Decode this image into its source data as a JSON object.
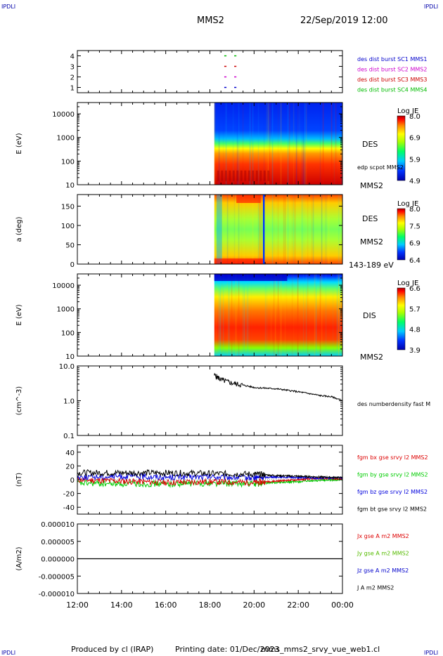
{
  "header": {
    "corner_tl": "IPDLI",
    "corner_tr": "IPDLI",
    "corner_bl": "IPDLI",
    "corner_br": "IPDLI",
    "title": "MMS2",
    "datetime": "22/Sep/2019 12:00"
  },
  "footer": {
    "produced": "Produced by cl (IRAP)",
    "printing": "Printing date: 01/Dec/2023",
    "file": "mms_mms2_srvy_vue_web1.cl"
  },
  "colors": {
    "mms1": "#0000cc",
    "mms2": "#cc00cc",
    "mms3": "#cc0000",
    "mms4": "#00bb00",
    "bx": "#dd0000",
    "by": "#00cc00",
    "bz": "#0000dd",
    "bt": "#000000"
  },
  "chart_data": [
    {
      "type": "scatter",
      "panel": "burst",
      "ylabel": "",
      "ylim": [
        0.5,
        4.5
      ],
      "y_ticks": [
        "1",
        "2",
        "3",
        "4"
      ],
      "legend": [
        "des dist burst SC1 MMS1",
        "des dist burst SC2 MMS2",
        "des dist burst SC3 MMS3",
        "des dist burst SC4 MMS4"
      ],
      "series": [
        {
          "name": "des dist burst SC4 MMS4",
          "y": 4,
          "intervals": [
            [
              18.65,
              18.75
            ],
            [
              19.1,
              19.2
            ]
          ]
        },
        {
          "name": "des dist burst SC3 MMS3",
          "y": 3,
          "intervals": [
            [
              18.65,
              18.75
            ],
            [
              19.1,
              19.2
            ]
          ]
        },
        {
          "name": "des dist burst SC2 MMS2",
          "y": 2,
          "intervals": [
            [
              18.65,
              18.75
            ],
            [
              19.1,
              19.2
            ]
          ]
        },
        {
          "name": "des dist burst SC1 MMS1",
          "y": 1,
          "intervals": [
            [
              18.65,
              18.75
            ],
            [
              19.1,
              19.2
            ]
          ]
        }
      ]
    },
    {
      "type": "heatmap",
      "panel": "des-energy",
      "ylabel": "E (eV)",
      "yscale": "log",
      "ylim": [
        10,
        30000
      ],
      "y_ticks": [
        "10",
        "100",
        "1000",
        "10000"
      ],
      "data_start_hour": 18.2,
      "labels": [
        "DES",
        "edp scpot MMS2",
        "MMS2"
      ],
      "colorbar": {
        "title": "Log JE",
        "ticks": [
          "8.0",
          "6.9",
          "5.9",
          "4.9"
        ]
      },
      "peak_band_eV": [
        60,
        250
      ]
    },
    {
      "type": "heatmap",
      "panel": "des-pitch",
      "ylabel": "a (deg)",
      "ylim": [
        0,
        180
      ],
      "y_ticks": [
        "0",
        "50",
        "100",
        "150"
      ],
      "data_start_hour": 18.2,
      "labels": [
        "DES",
        "MMS2",
        "143-189 eV"
      ],
      "colorbar": {
        "title": "Log JE",
        "ticks": [
          "8.0",
          "7.5",
          "6.9",
          "6.4"
        ]
      }
    },
    {
      "type": "heatmap",
      "panel": "dis-energy",
      "ylabel": "E (eV)",
      "yscale": "log",
      "ylim": [
        10,
        30000
      ],
      "y_ticks": [
        "10",
        "100",
        "1000",
        "10000"
      ],
      "data_start_hour": 18.2,
      "labels": [
        "DIS",
        "MMS2"
      ],
      "colorbar": {
        "title": "Log JE",
        "ticks": [
          "6.6",
          "5.7",
          "4.8",
          "3.9"
        ]
      },
      "peak_band_eV": [
        100,
        2000
      ]
    },
    {
      "type": "line",
      "panel": "density",
      "ylabel": "(cm^-3)",
      "yscale": "log",
      "ylim": [
        0.1,
        10
      ],
      "y_ticks": [
        "0.1",
        "1.0",
        "10.0"
      ],
      "legend": [
        "des numberdensity fast M"
      ],
      "series": [
        {
          "name": "des numberdensity fast M",
          "x": [
            18.2,
            18.5,
            19.0,
            19.5,
            20.0,
            20.5,
            21.0,
            21.5,
            22.0,
            22.5,
            23.0,
            23.5,
            24.0
          ],
          "values": [
            5.5,
            4.0,
            3.2,
            2.8,
            2.4,
            2.3,
            2.2,
            2.0,
            1.8,
            1.6,
            1.4,
            1.3,
            1.0
          ]
        }
      ]
    },
    {
      "type": "line",
      "panel": "magnetic-field",
      "ylabel": "(nT)",
      "ylim": [
        -50,
        50
      ],
      "y_ticks": [
        "-40",
        "-20",
        "0",
        "20",
        "40"
      ],
      "legend": [
        "fgm bx gse srvy l2 MMS2",
        "fgm by gse srvy l2 MMS2",
        "fgm bz gse srvy l2 MMS2",
        "fgm bt gse srvy l2 MMS2"
      ],
      "series": [
        {
          "name": "fgm bx gse srvy l2 MMS2",
          "x": [
            12,
            14,
            16,
            18,
            20,
            21,
            22,
            23,
            24
          ],
          "values": [
            0,
            -2,
            -4,
            -3,
            -4,
            -2,
            0,
            2,
            1
          ]
        },
        {
          "name": "fgm by gse srvy l2 MMS2",
          "x": [
            12,
            14,
            16,
            18,
            20,
            21,
            22,
            23,
            24
          ],
          "values": [
            -5,
            -6,
            -6,
            -5,
            -6,
            -4,
            -3,
            -1,
            0
          ]
        },
        {
          "name": "fgm bz gse srvy l2 MMS2",
          "x": [
            12,
            14,
            16,
            18,
            20,
            21,
            22,
            23,
            24
          ],
          "values": [
            4,
            5,
            4,
            4,
            3,
            4,
            3,
            2,
            3
          ]
        },
        {
          "name": "fgm bt gse srvy l2 MMS2",
          "x": [
            12,
            14,
            16,
            18,
            20,
            21,
            22,
            23,
            24
          ],
          "values": [
            10,
            10,
            10,
            9,
            8,
            6,
            5,
            4,
            3
          ]
        }
      ]
    },
    {
      "type": "line",
      "panel": "current-density",
      "ylabel": "(A/m2)",
      "ylim": [
        -1e-05,
        1e-05
      ],
      "y_ticks": [
        "-0.000010",
        "-0.000005",
        "0.000000",
        "0.000005",
        "0.000010"
      ],
      "legend": [
        "Jx gse A m2 MMS2",
        "Jy gse A m2 MMS2",
        "Jz gse A m2 MMS2",
        "J A m2 MMS2"
      ],
      "series": [
        {
          "name": "J A m2 MMS2",
          "x": [
            12,
            24
          ],
          "values": [
            0,
            0
          ]
        }
      ]
    }
  ],
  "x_axis": {
    "xlim": [
      12,
      24
    ],
    "tick_labels": [
      "12:00",
      "14:00",
      "16:00",
      "18:00",
      "20:00",
      "22:00",
      "00:00"
    ]
  }
}
